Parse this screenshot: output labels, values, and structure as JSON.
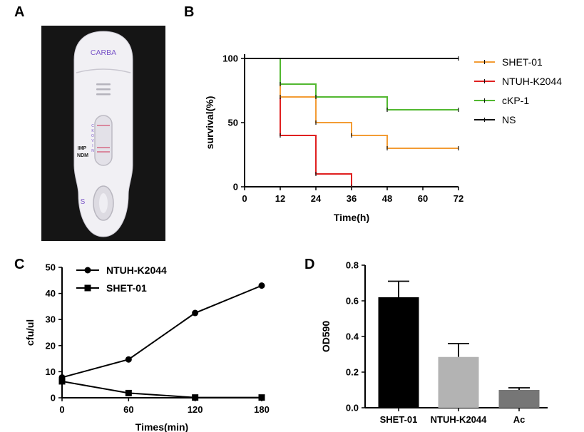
{
  "panels": {
    "a": "A",
    "b": "B",
    "c": "C",
    "d": "D"
  },
  "photo": {
    "cassette_label": "CARBA",
    "sample_label": "S",
    "line_letters": [
      "C",
      "K",
      "O",
      "V",
      "I",
      "N"
    ],
    "positive_labels": [
      "IMP",
      "NDM"
    ],
    "colors": {
      "background": "#151515",
      "cassette": "#f1f0f4",
      "text": "#7a56c8",
      "band": "#d66a86"
    }
  },
  "chart_data": [
    {
      "type": "line",
      "subtype": "step",
      "xlabel": "Time(h)",
      "ylabel": "survival(%)",
      "xlim": [
        0,
        72
      ],
      "ylim": [
        0,
        100
      ],
      "xticks": [
        "0",
        "12",
        "24",
        "36",
        "48",
        "60",
        "72"
      ],
      "yticks": [
        "0",
        "50",
        "100"
      ],
      "legend_position": "right",
      "series": [
        {
          "name": "SHET-01",
          "color": "#f39c34",
          "points": [
            [
              0,
              100
            ],
            [
              12,
              70
            ],
            [
              24,
              50
            ],
            [
              36,
              40
            ],
            [
              48,
              30
            ],
            [
              72,
              30
            ]
          ]
        },
        {
          "name": "NTUH-K2044",
          "color": "#e02020",
          "points": [
            [
              0,
              100
            ],
            [
              12,
              40
            ],
            [
              24,
              10
            ],
            [
              36,
              0
            ]
          ]
        },
        {
          "name": "cKP-1",
          "color": "#52b830",
          "points": [
            [
              0,
              100
            ],
            [
              12,
              80
            ],
            [
              24,
              70
            ],
            [
              48,
              60
            ],
            [
              72,
              60
            ]
          ]
        },
        {
          "name": "NS",
          "color": "#111111",
          "points": [
            [
              0,
              100
            ],
            [
              72,
              100
            ]
          ]
        }
      ]
    },
    {
      "type": "line",
      "xlabel": "Times(min)",
      "ylabel": "cfu/ul",
      "xlim": [
        0,
        180
      ],
      "ylim": [
        0,
        50
      ],
      "x": [
        0,
        60,
        120,
        180
      ],
      "xticks": [
        "0",
        "60",
        "120",
        "180"
      ],
      "yticks": [
        "0",
        "10",
        "20",
        "30",
        "40",
        "50"
      ],
      "legend_position": "top-left",
      "series": [
        {
          "name": "NTUH-K2044",
          "marker": "circle",
          "values": [
            7.8,
            14.7,
            32.5,
            43.0
          ]
        },
        {
          "name": "SHET-01",
          "marker": "square",
          "values": [
            6.3,
            1.8,
            0.1,
            0.1
          ]
        }
      ]
    },
    {
      "type": "bar",
      "ylabel": "OD590",
      "ylim": [
        0,
        0.8
      ],
      "yticks": [
        "0.0",
        "0.2",
        "0.4",
        "0.6",
        "0.8"
      ],
      "categories": [
        "SHET-01",
        "NTUH-K2044",
        "Ac"
      ],
      "values": [
        0.62,
        0.285,
        0.1
      ],
      "errors": [
        0.09,
        0.075,
        0.012
      ],
      "colors": [
        "#000000",
        "#b3b3b3",
        "#767676"
      ]
    }
  ]
}
